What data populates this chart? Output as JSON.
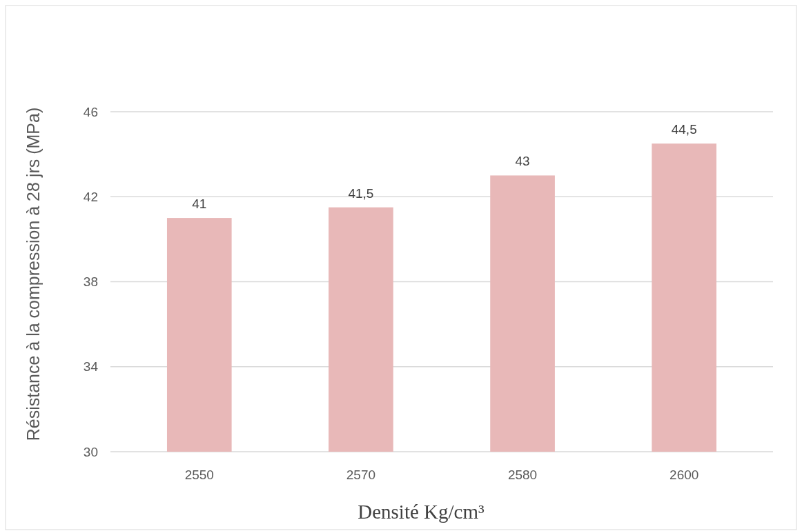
{
  "chart_data": {
    "type": "bar",
    "ylabel": "Résistance à la compression à 28 jrs (MPa)",
    "xlabel": "Densité Kg/cm³",
    "categories": [
      "2550",
      "2570",
      "2580",
      "2600"
    ],
    "values": [
      41,
      41.5,
      43,
      44.5
    ],
    "value_labels": [
      "41",
      "41,5",
      "43",
      "44,5"
    ],
    "color": "#e8b8b8",
    "ylim": [
      30,
      46
    ],
    "yticks": [
      30,
      34,
      38,
      42,
      46
    ],
    "grid": "y"
  }
}
